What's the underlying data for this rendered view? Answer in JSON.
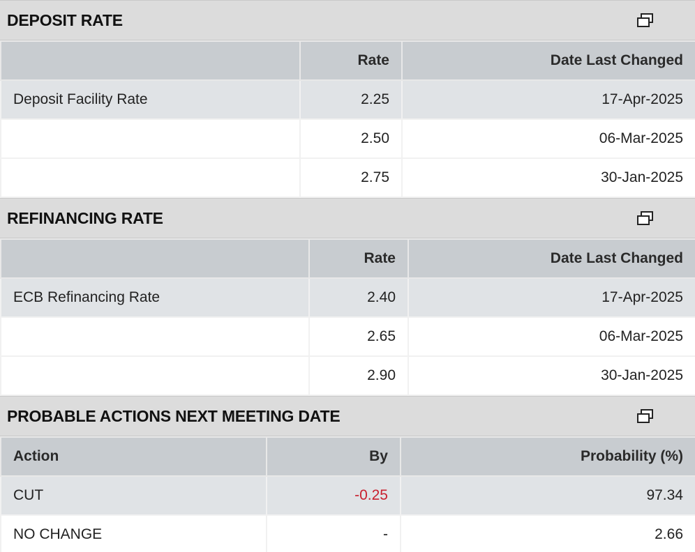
{
  "deposit": {
    "title": "DEPOSIT RATE",
    "headers": {
      "label": "",
      "rate": "Rate",
      "date": "Date Last Changed"
    },
    "rows": [
      {
        "label": "Deposit Facility Rate",
        "rate": "2.25",
        "date": "17-Apr-2025"
      },
      {
        "label": "",
        "rate": "2.50",
        "date": "06-Mar-2025"
      },
      {
        "label": "",
        "rate": "2.75",
        "date": "30-Jan-2025"
      }
    ]
  },
  "refinancing": {
    "title": "REFINANCING RATE",
    "headers": {
      "label": "",
      "rate": "Rate",
      "date": "Date Last Changed"
    },
    "rows": [
      {
        "label": "ECB Refinancing Rate",
        "rate": "2.40",
        "date": "17-Apr-2025"
      },
      {
        "label": "",
        "rate": "2.65",
        "date": "06-Mar-2025"
      },
      {
        "label": "",
        "rate": "2.90",
        "date": "30-Jan-2025"
      }
    ]
  },
  "probable": {
    "title": "PROBABLE ACTIONS NEXT MEETING DATE",
    "headers": {
      "action": "Action",
      "by": "By",
      "probability": "Probability (%)"
    },
    "rows": [
      {
        "action": "CUT",
        "by": "-0.25",
        "probability": "97.34"
      },
      {
        "action": "NO CHANGE",
        "by": "-",
        "probability": "2.66"
      }
    ]
  },
  "icons": {
    "popout": "popout-window-icon"
  },
  "colors": {
    "negative": "#c8202f",
    "header_bg": "#dcdcdc",
    "column_header_bg": "#c8ccd0",
    "highlight_row_bg": "#e0e3e6"
  }
}
